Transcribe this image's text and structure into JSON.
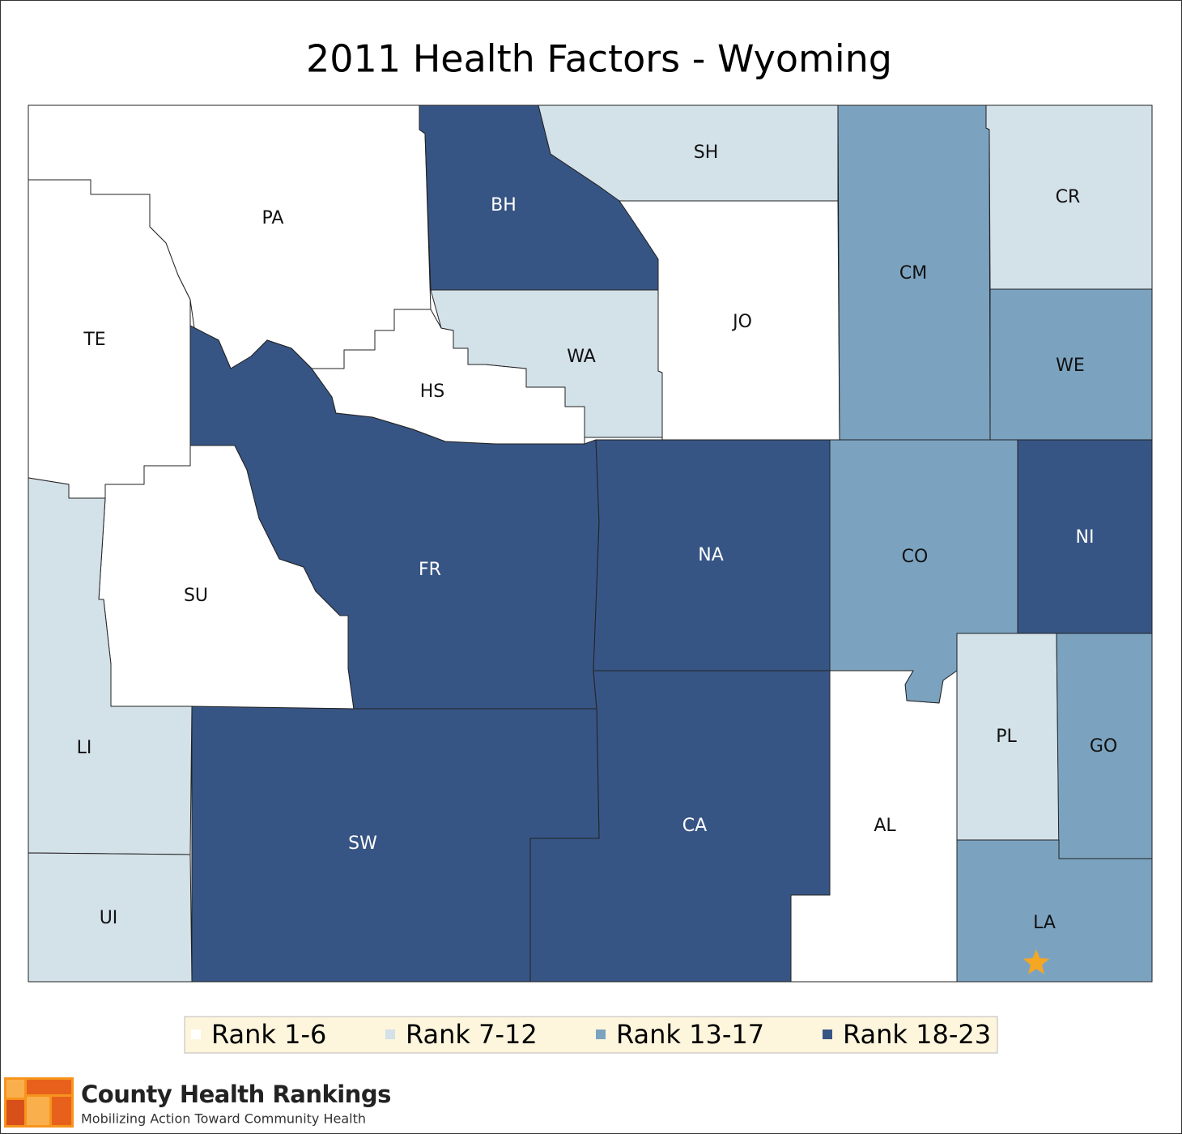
{
  "title": "2011 Health Factors - Wyoming",
  "legend": [
    {
      "label": "Rank 1-6",
      "color": "#ffffff"
    },
    {
      "label": "Rank 7-12",
      "color": "#d3e1e9"
    },
    {
      "label": "Rank 13-17",
      "color": "#7ba3c0"
    },
    {
      "label": "Rank 18-23",
      "color": "#375584"
    }
  ],
  "counties": [
    {
      "label": "PA",
      "rank_group": 0
    },
    {
      "label": "TE",
      "rank_group": 0
    },
    {
      "label": "SU",
      "rank_group": 0
    },
    {
      "label": "FR",
      "rank_group": 3
    },
    {
      "label": "HS",
      "rank_group": 0
    },
    {
      "label": "BH",
      "rank_group": 3
    },
    {
      "label": "SH",
      "rank_group": 1
    },
    {
      "label": "WA",
      "rank_group": 1
    },
    {
      "label": "JO",
      "rank_group": 0
    },
    {
      "label": "CM",
      "rank_group": 2
    },
    {
      "label": "CR",
      "rank_group": 1
    },
    {
      "label": "WE",
      "rank_group": 2
    },
    {
      "label": "NA",
      "rank_group": 3
    },
    {
      "label": "CO",
      "rank_group": 2
    },
    {
      "label": "NI",
      "rank_group": 3
    },
    {
      "label": "PL",
      "rank_group": 1
    },
    {
      "label": "GO",
      "rank_group": 2
    },
    {
      "label": "LA",
      "rank_group": 2
    },
    {
      "label": "AL",
      "rank_group": 0
    },
    {
      "label": "CA",
      "rank_group": 3
    },
    {
      "label": "SW",
      "rank_group": 3
    },
    {
      "label": "LI",
      "rank_group": 1
    },
    {
      "label": "UI",
      "rank_group": 1
    }
  ],
  "logo": {
    "name": "County Health Rankings",
    "tagline": "Mobilizing Action Toward Community Health"
  }
}
